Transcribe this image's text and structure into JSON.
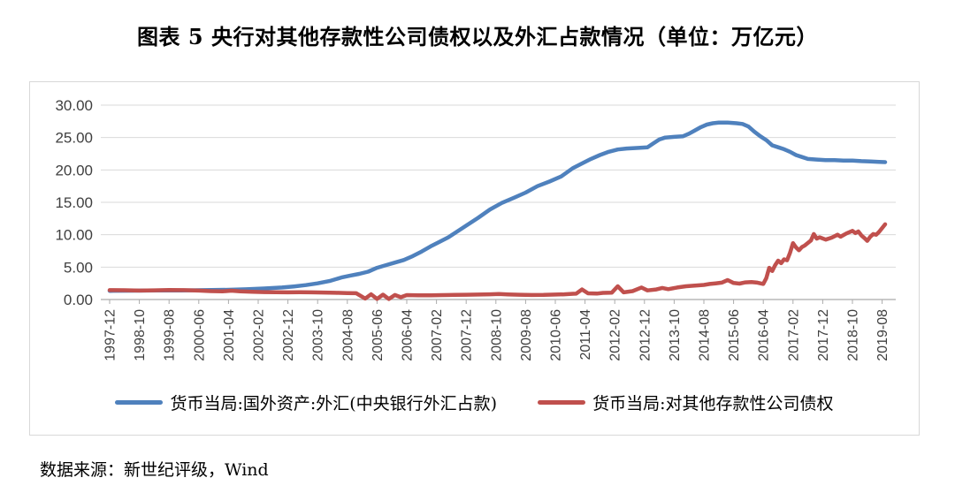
{
  "page": {
    "title": "图表 5  央行对其他存款性公司债权以及外汇占款情况（单位：万亿元）",
    "source_note": "数据来源：新世纪评级，Wind"
  },
  "chart_data": {
    "type": "line",
    "title": "央行对其他存款性公司债权以及外汇占款情况",
    "unit": "万亿元",
    "grid": "horizontal",
    "legend_position": "bottom",
    "x_axis": {
      "start": "1997-12",
      "end": "2019-08",
      "tick_interval_months": 10,
      "label_rotation": -90,
      "tick_labels": [
        "1997-12",
        "1998-10",
        "1999-08",
        "2000-06",
        "2001-04",
        "2002-02",
        "2002-12",
        "2003-10",
        "2004-08",
        "2005-06",
        "2006-04",
        "2007-02",
        "2007-12",
        "2008-10",
        "2009-08",
        "2010-06",
        "2011-04",
        "2012-02",
        "2012-12",
        "2013-10",
        "2014-08",
        "2015-06",
        "2016-04",
        "2017-02",
        "2017-12",
        "2018-10",
        "2019-08"
      ]
    },
    "y_axis": {
      "min": 0,
      "max": 30,
      "step": 5,
      "tick_labels": [
        "30.00",
        "25.00",
        "20.00",
        "15.00",
        "10.00",
        "5.00",
        "0.00"
      ]
    },
    "series": [
      {
        "name": "货币当局:国外资产:外汇(中央银行外汇占款)",
        "color": "#4F81BD",
        "x_unit": "months_since_1997-12",
        "points": [
          [
            0,
            1.34
          ],
          [
            8,
            1.37
          ],
          [
            16,
            1.39
          ],
          [
            24,
            1.41
          ],
          [
            32,
            1.44
          ],
          [
            40,
            1.5
          ],
          [
            46,
            1.58
          ],
          [
            52,
            1.7
          ],
          [
            58,
            1.86
          ],
          [
            62,
            2.02
          ],
          [
            66,
            2.22
          ],
          [
            70,
            2.5
          ],
          [
            74,
            2.85
          ],
          [
            78,
            3.4
          ],
          [
            81,
            3.7
          ],
          [
            84,
            3.95
          ],
          [
            87,
            4.3
          ],
          [
            90,
            4.9
          ],
          [
            93,
            5.3
          ],
          [
            96,
            5.7
          ],
          [
            99,
            6.1
          ],
          [
            102,
            6.7
          ],
          [
            105,
            7.4
          ],
          [
            108,
            8.2
          ],
          [
            111,
            8.9
          ],
          [
            114,
            9.6
          ],
          [
            117,
            10.5
          ],
          [
            120,
            11.4
          ],
          [
            124,
            12.6
          ],
          [
            128,
            13.9
          ],
          [
            132,
            14.9
          ],
          [
            136,
            15.7
          ],
          [
            140,
            16.5
          ],
          [
            144,
            17.5
          ],
          [
            148,
            18.2
          ],
          [
            152,
            19.0
          ],
          [
            156,
            20.3
          ],
          [
            159,
            21.0
          ],
          [
            162,
            21.7
          ],
          [
            165,
            22.3
          ],
          [
            168,
            22.8
          ],
          [
            171,
            23.15
          ],
          [
            174,
            23.3
          ],
          [
            178,
            23.4
          ],
          [
            181,
            23.5
          ],
          [
            183,
            24.1
          ],
          [
            185,
            24.7
          ],
          [
            187,
            25.0
          ],
          [
            190,
            25.1
          ],
          [
            193,
            25.2
          ],
          [
            195,
            25.6
          ],
          [
            197,
            26.1
          ],
          [
            199,
            26.6
          ],
          [
            201,
            27.0
          ],
          [
            203,
            27.2
          ],
          [
            205,
            27.3
          ],
          [
            208,
            27.3
          ],
          [
            211,
            27.2
          ],
          [
            213,
            27.1
          ],
          [
            215,
            26.7
          ],
          [
            217,
            25.9
          ],
          [
            219,
            25.2
          ],
          [
            221,
            24.6
          ],
          [
            223,
            23.8
          ],
          [
            225,
            23.5
          ],
          [
            227,
            23.2
          ],
          [
            229,
            22.8
          ],
          [
            231,
            22.3
          ],
          [
            233,
            22.0
          ],
          [
            235,
            21.7
          ],
          [
            238,
            21.6
          ],
          [
            241,
            21.5
          ],
          [
            244,
            21.5
          ],
          [
            247,
            21.45
          ],
          [
            250,
            21.45
          ],
          [
            253,
            21.35
          ],
          [
            256,
            21.3
          ],
          [
            259,
            21.25
          ],
          [
            261,
            21.2
          ]
        ]
      },
      {
        "name": "货币当局:对其他存款性公司债权",
        "color": "#C0504D",
        "x_unit": "months_since_1997-12",
        "points": [
          [
            0,
            1.45
          ],
          [
            5,
            1.43
          ],
          [
            10,
            1.38
          ],
          [
            15,
            1.42
          ],
          [
            20,
            1.47
          ],
          [
            25,
            1.44
          ],
          [
            30,
            1.38
          ],
          [
            34,
            1.3
          ],
          [
            38,
            1.26
          ],
          [
            41,
            1.36
          ],
          [
            44,
            1.25
          ],
          [
            48,
            1.18
          ],
          [
            52,
            1.14
          ],
          [
            56,
            1.12
          ],
          [
            60,
            1.1
          ],
          [
            64,
            1.12
          ],
          [
            68,
            1.1
          ],
          [
            72,
            1.08
          ],
          [
            76,
            1.03
          ],
          [
            80,
            1.0
          ],
          [
            83,
            0.97
          ],
          [
            86,
            0.15
          ],
          [
            88,
            0.8
          ],
          [
            90,
            0.1
          ],
          [
            92,
            0.75
          ],
          [
            94,
            0.08
          ],
          [
            96,
            0.7
          ],
          [
            98,
            0.35
          ],
          [
            100,
            0.68
          ],
          [
            104,
            0.66
          ],
          [
            108,
            0.66
          ],
          [
            112,
            0.68
          ],
          [
            116,
            0.71
          ],
          [
            120,
            0.73
          ],
          [
            124,
            0.77
          ],
          [
            128,
            0.81
          ],
          [
            131,
            0.84
          ],
          [
            134,
            0.79
          ],
          [
            138,
            0.74
          ],
          [
            142,
            0.69
          ],
          [
            146,
            0.71
          ],
          [
            150,
            0.76
          ],
          [
            153,
            0.81
          ],
          [
            156,
            0.88
          ],
          [
            157,
            0.9
          ],
          [
            159,
            1.55
          ],
          [
            161,
            0.95
          ],
          [
            164,
            0.92
          ],
          [
            166,
            1.02
          ],
          [
            169,
            1.05
          ],
          [
            171,
            2.05
          ],
          [
            173,
            1.1
          ],
          [
            176,
            1.3
          ],
          [
            179,
            1.85
          ],
          [
            181,
            1.4
          ],
          [
            184,
            1.55
          ],
          [
            186,
            1.78
          ],
          [
            188,
            1.6
          ],
          [
            191,
            1.85
          ],
          [
            194,
            2.05
          ],
          [
            197,
            2.15
          ],
          [
            200,
            2.25
          ],
          [
            202,
            2.4
          ],
          [
            204,
            2.5
          ],
          [
            206,
            2.6
          ],
          [
            208,
            3.0
          ],
          [
            210,
            2.55
          ],
          [
            212,
            2.45
          ],
          [
            214,
            2.65
          ],
          [
            216,
            2.7
          ],
          [
            218,
            2.6
          ],
          [
            220,
            2.4
          ],
          [
            221,
            3.3
          ],
          [
            222,
            4.9
          ],
          [
            223,
            4.4
          ],
          [
            224,
            5.3
          ],
          [
            225,
            6.0
          ],
          [
            226,
            5.6
          ],
          [
            227,
            6.2
          ],
          [
            228,
            6.05
          ],
          [
            229,
            7.2
          ],
          [
            230,
            8.7
          ],
          [
            231,
            8.05
          ],
          [
            232,
            7.6
          ],
          [
            233,
            8.1
          ],
          [
            234,
            8.35
          ],
          [
            236,
            9.1
          ],
          [
            237,
            10.1
          ],
          [
            238,
            9.4
          ],
          [
            239,
            9.6
          ],
          [
            241,
            9.25
          ],
          [
            243,
            9.55
          ],
          [
            245,
            10.0
          ],
          [
            246,
            9.7
          ],
          [
            248,
            10.2
          ],
          [
            250,
            10.6
          ],
          [
            251,
            10.25
          ],
          [
            252,
            10.5
          ],
          [
            253,
            9.9
          ],
          [
            254,
            9.5
          ],
          [
            255,
            9.05
          ],
          [
            256,
            9.7
          ],
          [
            257,
            10.1
          ],
          [
            258,
            10.0
          ],
          [
            259,
            10.45
          ],
          [
            261,
            11.6
          ]
        ]
      }
    ]
  }
}
